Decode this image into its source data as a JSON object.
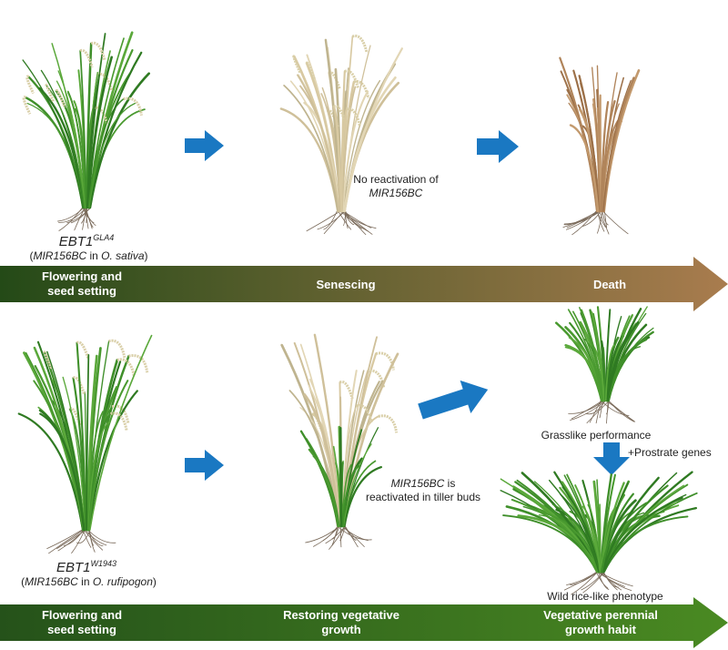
{
  "colors": {
    "arrow_blue": "#1a78c2",
    "top_band_start": "#244a17",
    "top_band_end": "#a97c4e",
    "bottom_band_start": "#25521a",
    "bottom_band_end": "#4a8a22",
    "green_plant": "#3f8f2a",
    "senescing_plant": "#d8c9a2",
    "dead_plant": "#b0845a"
  },
  "top": {
    "genotype": "EBT1",
    "genotype_sup": "GLA4",
    "note_gene": "MIR156BC",
    "note_rest": " in O. sativa",
    "note_species": "O. sativa",
    "no_reactivation_line1": "No reactivation of",
    "no_reactivation_gene": "MIR156BC",
    "stages": [
      "Flowering and",
      "seed setting",
      "Senescing",
      "Death"
    ]
  },
  "bottom": {
    "genotype": "EBT1",
    "genotype_sup": "W1943",
    "note_gene": "MIR156BC",
    "note_mid": " in ",
    "note_species": "O. rufipogon",
    "reactivated_gene": "MIR156BC",
    "reactivated_line1_rest": " is",
    "reactivated_line2": "reactivated in tiller buds",
    "grasslike": "Grasslike performance",
    "prostrate": "+Prostrate genes",
    "wild": "Wild rice-like phenotype",
    "stages": [
      "Flowering and",
      "seed setting",
      "Restoring vegetative",
      "growth",
      "Vegetative perennial",
      "growth habit"
    ]
  }
}
